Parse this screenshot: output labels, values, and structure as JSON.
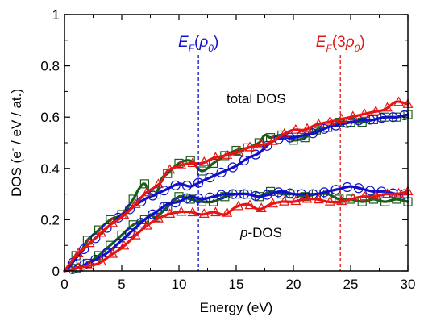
{
  "chart_data": {
    "type": "line",
    "xlabel": "Energy (eV)",
    "ylabel_main": "DOS (e",
    "ylabel_sup": "-",
    "ylabel_rest": " / eV / at.)",
    "xlim": [
      0,
      30
    ],
    "ylim": [
      0,
      1
    ],
    "xticks": [
      "0",
      "5",
      "10",
      "15",
      "20",
      "25",
      "30"
    ],
    "yticks": [
      "0",
      "0.2",
      "0.4",
      "0.6",
      "0.8",
      "1"
    ],
    "grid": false,
    "annotations": {
      "total": "total DOS",
      "p_italic": "p",
      "p_rest": "-DOS"
    },
    "fermi_lines": [
      {
        "x": 11.7,
        "color": "#1010d0",
        "E": "E",
        "sub": "F",
        "open": "(",
        "coef": "",
        "rho": "ρ",
        "rho_sub": "0",
        "close": ")"
      },
      {
        "x": 24.1,
        "color": "#e01818",
        "E": "E",
        "sub": "F",
        "open": "(",
        "coef": "3",
        "rho": "ρ",
        "rho_sub": "0",
        "close": ")"
      }
    ],
    "series": [
      {
        "group": "total",
        "color": "#1a5c1a",
        "marker": "square",
        "points": [
          [
            0,
            0
          ],
          [
            0.5,
            0.02
          ],
          [
            1,
            0.06
          ],
          [
            1.5,
            0.08
          ],
          [
            2,
            0.12
          ],
          [
            3,
            0.16
          ],
          [
            4,
            0.2
          ],
          [
            5,
            0.22
          ],
          [
            6,
            0.28
          ],
          [
            6.5,
            0.32
          ],
          [
            7,
            0.34
          ],
          [
            7.5,
            0.3
          ],
          [
            8,
            0.3
          ],
          [
            8.5,
            0.36
          ],
          [
            9,
            0.38
          ],
          [
            10,
            0.42
          ],
          [
            11,
            0.43
          ],
          [
            12,
            0.39
          ],
          [
            13,
            0.42
          ],
          [
            14,
            0.45
          ],
          [
            15,
            0.47
          ],
          [
            16,
            0.48
          ],
          [
            17,
            0.5
          ],
          [
            17.5,
            0.53
          ],
          [
            18,
            0.52
          ],
          [
            19,
            0.53
          ],
          [
            20,
            0.51
          ],
          [
            21,
            0.52
          ],
          [
            22,
            0.55
          ],
          [
            23,
            0.56
          ],
          [
            24,
            0.58
          ],
          [
            25,
            0.58
          ],
          [
            26,
            0.58
          ],
          [
            27,
            0.59
          ],
          [
            28,
            0.6
          ],
          [
            29,
            0.6
          ],
          [
            30,
            0.61
          ]
        ],
        "marker_x": [
          1,
          2,
          3,
          4,
          5,
          6,
          7,
          8,
          9,
          10,
          11,
          12,
          13,
          14,
          15,
          16,
          17,
          18,
          19,
          20,
          21,
          22,
          23,
          24,
          25,
          26,
          27,
          28,
          29,
          30
        ]
      },
      {
        "group": "total",
        "color": "#1010c8",
        "marker": "circle",
        "points": [
          [
            0,
            0
          ],
          [
            0.5,
            0.02
          ],
          [
            1,
            0.05
          ],
          [
            2,
            0.1
          ],
          [
            3,
            0.14
          ],
          [
            4,
            0.18
          ],
          [
            5,
            0.22
          ],
          [
            6,
            0.25
          ],
          [
            7,
            0.28
          ],
          [
            8,
            0.3
          ],
          [
            9,
            0.32
          ],
          [
            10,
            0.34
          ],
          [
            11,
            0.33
          ],
          [
            12,
            0.35
          ],
          [
            13,
            0.37
          ],
          [
            14,
            0.39
          ],
          [
            15,
            0.41
          ],
          [
            16,
            0.44
          ],
          [
            17,
            0.46
          ],
          [
            18,
            0.5
          ],
          [
            19,
            0.52
          ],
          [
            20,
            0.52
          ],
          [
            21,
            0.53
          ],
          [
            22,
            0.54
          ],
          [
            23,
            0.56
          ],
          [
            24,
            0.57
          ],
          [
            25,
            0.58
          ],
          [
            26,
            0.59
          ],
          [
            27,
            0.59
          ],
          [
            28,
            0.6
          ],
          [
            29,
            0.6
          ],
          [
            30,
            0.61
          ]
        ],
        "marker_x": [
          0.7,
          1.7,
          2.7,
          3.7,
          4.7,
          5.7,
          6.7,
          7.7,
          8.7,
          9.7,
          10.7,
          11.7,
          12.7,
          13.7,
          14.7,
          15.7,
          16.7,
          17.7,
          18.7,
          19.7,
          20.7,
          21.7,
          22.7,
          23.7,
          24.7,
          25.7,
          26.7,
          27.7,
          28.7,
          29.7
        ]
      },
      {
        "group": "total",
        "color": "#e61414",
        "marker": "triangle",
        "points": [
          [
            0,
            0
          ],
          [
            1,
            0.06
          ],
          [
            2,
            0.1
          ],
          [
            3,
            0.14
          ],
          [
            4,
            0.18
          ],
          [
            5,
            0.21
          ],
          [
            6,
            0.25
          ],
          [
            7,
            0.3
          ],
          [
            8,
            0.33
          ],
          [
            8.5,
            0.35
          ],
          [
            9,
            0.39
          ],
          [
            10,
            0.41
          ],
          [
            11,
            0.42
          ],
          [
            12,
            0.42
          ],
          [
            13,
            0.44
          ],
          [
            14,
            0.45
          ],
          [
            15,
            0.46
          ],
          [
            16,
            0.48
          ],
          [
            17,
            0.49
          ],
          [
            18,
            0.5
          ],
          [
            19,
            0.53
          ],
          [
            20,
            0.55
          ],
          [
            21,
            0.55
          ],
          [
            22,
            0.57
          ],
          [
            23,
            0.58
          ],
          [
            24,
            0.59
          ],
          [
            25,
            0.6
          ],
          [
            26,
            0.61
          ],
          [
            27,
            0.62
          ],
          [
            28,
            0.63
          ],
          [
            29,
            0.66
          ],
          [
            30,
            0.65
          ]
        ],
        "marker_x": [
          1.2,
          2.2,
          3.2,
          4.2,
          5.2,
          6.2,
          7.2,
          8.2,
          9.2,
          10.2,
          11.2,
          12.2,
          13.2,
          14.2,
          15.2,
          16.2,
          17.2,
          18.2,
          19.2,
          20.2,
          21.2,
          22.2,
          23.2,
          24.2,
          25.2,
          26.2,
          27.2,
          28.2,
          29.2,
          30
        ]
      },
      {
        "group": "p",
        "color": "#1a5c1a",
        "marker": "square",
        "points": [
          [
            0,
            0
          ],
          [
            1,
            0.01
          ],
          [
            2,
            0.03
          ],
          [
            3,
            0.06
          ],
          [
            4,
            0.1
          ],
          [
            5,
            0.14
          ],
          [
            6,
            0.18
          ],
          [
            7,
            0.2
          ],
          [
            7.5,
            0.22
          ],
          [
            8,
            0.21
          ],
          [
            9,
            0.25
          ],
          [
            10,
            0.29
          ],
          [
            11,
            0.28
          ],
          [
            12,
            0.27
          ],
          [
            13,
            0.27
          ],
          [
            14,
            0.29
          ],
          [
            15,
            0.3
          ],
          [
            16,
            0.3
          ],
          [
            17,
            0.29
          ],
          [
            18,
            0.31
          ],
          [
            19,
            0.3
          ],
          [
            20,
            0.3
          ],
          [
            21,
            0.29
          ],
          [
            22,
            0.3
          ],
          [
            23,
            0.3
          ],
          [
            24,
            0.28
          ],
          [
            25,
            0.28
          ],
          [
            26,
            0.27
          ],
          [
            27,
            0.28
          ],
          [
            28,
            0.27
          ],
          [
            29,
            0.28
          ],
          [
            30,
            0.27
          ]
        ],
        "marker_x": [
          1,
          2,
          3,
          4,
          5,
          6,
          7,
          8,
          9,
          10,
          11,
          12,
          13,
          14,
          15,
          16,
          17,
          18,
          19,
          20,
          21,
          22,
          23,
          24,
          25,
          26,
          27,
          28,
          29,
          30
        ]
      },
      {
        "group": "p",
        "color": "#1010c8",
        "marker": "circle",
        "points": [
          [
            0,
            0
          ],
          [
            1,
            0.01
          ],
          [
            2,
            0.03
          ],
          [
            3,
            0.05
          ],
          [
            4,
            0.08
          ],
          [
            5,
            0.12
          ],
          [
            6,
            0.16
          ],
          [
            7,
            0.2
          ],
          [
            8,
            0.23
          ],
          [
            9,
            0.26
          ],
          [
            10,
            0.27
          ],
          [
            11,
            0.29
          ],
          [
            12,
            0.28
          ],
          [
            13,
            0.29
          ],
          [
            14,
            0.3
          ],
          [
            15,
            0.3
          ],
          [
            16,
            0.3
          ],
          [
            17,
            0.29
          ],
          [
            18,
            0.3
          ],
          [
            19,
            0.31
          ],
          [
            20,
            0.3
          ],
          [
            21,
            0.3
          ],
          [
            22,
            0.3
          ],
          [
            23,
            0.31
          ],
          [
            24,
            0.32
          ],
          [
            25,
            0.33
          ],
          [
            26,
            0.32
          ],
          [
            27,
            0.31
          ],
          [
            28,
            0.31
          ],
          [
            29,
            0.3
          ],
          [
            30,
            0.3
          ]
        ],
        "marker_x": [
          0.7,
          1.7,
          2.7,
          3.7,
          4.7,
          5.7,
          6.7,
          7.7,
          8.7,
          9.7,
          10.7,
          11.7,
          12.7,
          13.7,
          14.7,
          15.7,
          16.7,
          17.7,
          18.7,
          19.7,
          20.7,
          21.7,
          22.7,
          23.7,
          24.7,
          25.7,
          26.7,
          27.7,
          28.7,
          29.7
        ]
      },
      {
        "group": "p",
        "color": "#e61414",
        "marker": "triangle",
        "points": [
          [
            0,
            0
          ],
          [
            1,
            0.01
          ],
          [
            2,
            0.02
          ],
          [
            3,
            0.03
          ],
          [
            4,
            0.06
          ],
          [
            5,
            0.09
          ],
          [
            6,
            0.13
          ],
          [
            7,
            0.17
          ],
          [
            8,
            0.2
          ],
          [
            9,
            0.22
          ],
          [
            10,
            0.23
          ],
          [
            11,
            0.23
          ],
          [
            12,
            0.22
          ],
          [
            13,
            0.23
          ],
          [
            14,
            0.22
          ],
          [
            15,
            0.25
          ],
          [
            16,
            0.26
          ],
          [
            17,
            0.24
          ],
          [
            18,
            0.26
          ],
          [
            19,
            0.27
          ],
          [
            20,
            0.27
          ],
          [
            21,
            0.28
          ],
          [
            22,
            0.28
          ],
          [
            23,
            0.27
          ],
          [
            24,
            0.27
          ],
          [
            25,
            0.28
          ],
          [
            26,
            0.29
          ],
          [
            27,
            0.29
          ],
          [
            28,
            0.3
          ],
          [
            29,
            0.3
          ],
          [
            30,
            0.31
          ]
        ],
        "marker_x": [
          1.2,
          2.2,
          3.2,
          4.2,
          5.2,
          6.2,
          7.2,
          8.2,
          9.2,
          10.2,
          11.2,
          12.2,
          13.2,
          14.2,
          15.2,
          16.2,
          17.2,
          18.2,
          19.2,
          20.2,
          21.2,
          22.2,
          23.2,
          24.2,
          25.2,
          26.2,
          27.2,
          28.2,
          29.2,
          30
        ]
      }
    ]
  }
}
